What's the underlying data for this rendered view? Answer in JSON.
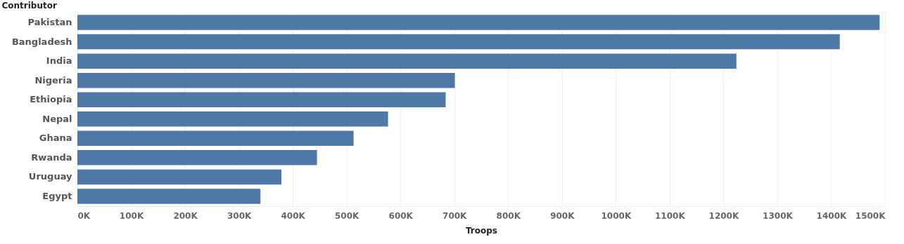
{
  "chart_data": {
    "type": "bar",
    "orientation": "horizontal",
    "xlabel": "Troops",
    "ylabel": "Contributor",
    "categories": [
      "Pakistan",
      "Bangladesh",
      "India",
      "Nigeria",
      "Ethiopia",
      "Nepal",
      "Ghana",
      "Rwanda",
      "Uruguay",
      "Egypt"
    ],
    "values": [
      1490000,
      1416000,
      1224000,
      701000,
      684000,
      577000,
      513000,
      445000,
      379000,
      340000
    ],
    "color": "#4e79a7",
    "xlim": [
      0,
      1500000
    ],
    "xticks": [
      {
        "value": 0,
        "label": "0K"
      },
      {
        "value": 100000,
        "label": "100K"
      },
      {
        "value": 200000,
        "label": "200K"
      },
      {
        "value": 300000,
        "label": "300K"
      },
      {
        "value": 400000,
        "label": "400K"
      },
      {
        "value": 500000,
        "label": "500K"
      },
      {
        "value": 600000,
        "label": "600K"
      },
      {
        "value": 700000,
        "label": "700K"
      },
      {
        "value": 800000,
        "label": "800K"
      },
      {
        "value": 900000,
        "label": "900K"
      },
      {
        "value": 1000000,
        "label": "1000K"
      },
      {
        "value": 1100000,
        "label": "1100K"
      },
      {
        "value": 1200000,
        "label": "1200K"
      },
      {
        "value": 1300000,
        "label": "1300K"
      },
      {
        "value": 1400000,
        "label": "1400K"
      },
      {
        "value": 1500000,
        "label": "1500K"
      }
    ],
    "grid": "x"
  }
}
